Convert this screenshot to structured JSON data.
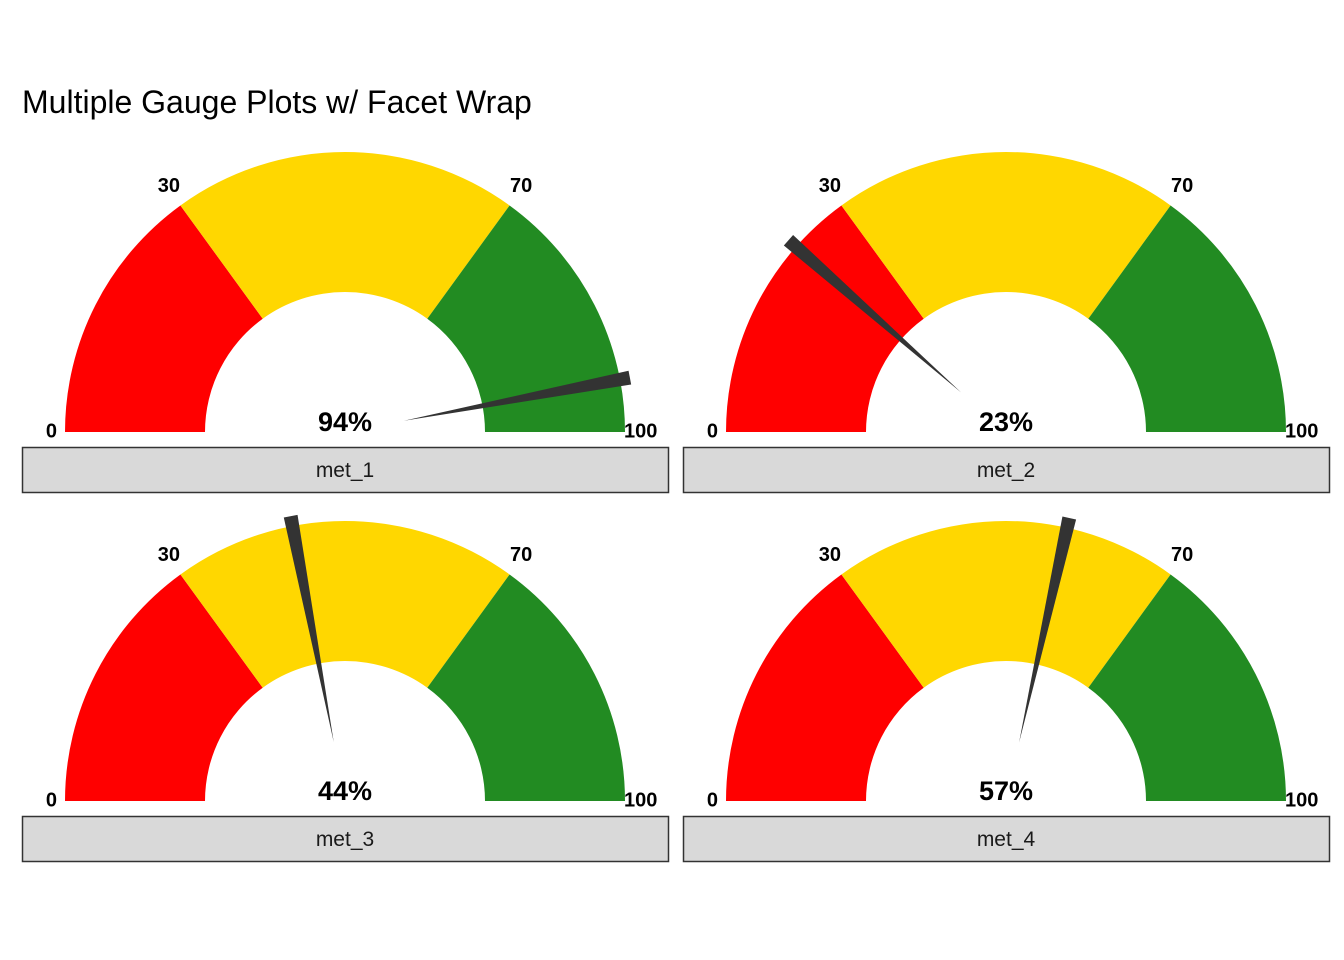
{
  "chart_data": {
    "type": "gauge",
    "title": "Multiple Gauge Plots w/ Facet Wrap",
    "xlabel": "",
    "ylabel": "",
    "scale": {
      "min": 0,
      "max": 100,
      "tick_labels": [
        "0",
        "30",
        "70",
        "100"
      ],
      "tick_values": [
        0,
        30,
        70,
        100
      ]
    },
    "bands": [
      {
        "from": 0,
        "to": 30,
        "color": "#FF0000"
      },
      {
        "from": 30,
        "to": 70,
        "color": "#FFD700"
      },
      {
        "from": 70,
        "to": 100,
        "color": "#228B22"
      }
    ],
    "needle_color": "#333333",
    "strip_fill": "#D9D9D9",
    "strip_border": "#333333",
    "facets": [
      {
        "name": "met_1",
        "value": 94,
        "label": "94%"
      },
      {
        "name": "met_2",
        "value": 23,
        "label": "23%"
      },
      {
        "name": "met_3",
        "value": 44,
        "label": "44%"
      },
      {
        "name": "met_4",
        "value": 57,
        "label": "57%"
      }
    ],
    "layout": "2x2 facet wrap",
    "grid": false,
    "legend": "none"
  }
}
